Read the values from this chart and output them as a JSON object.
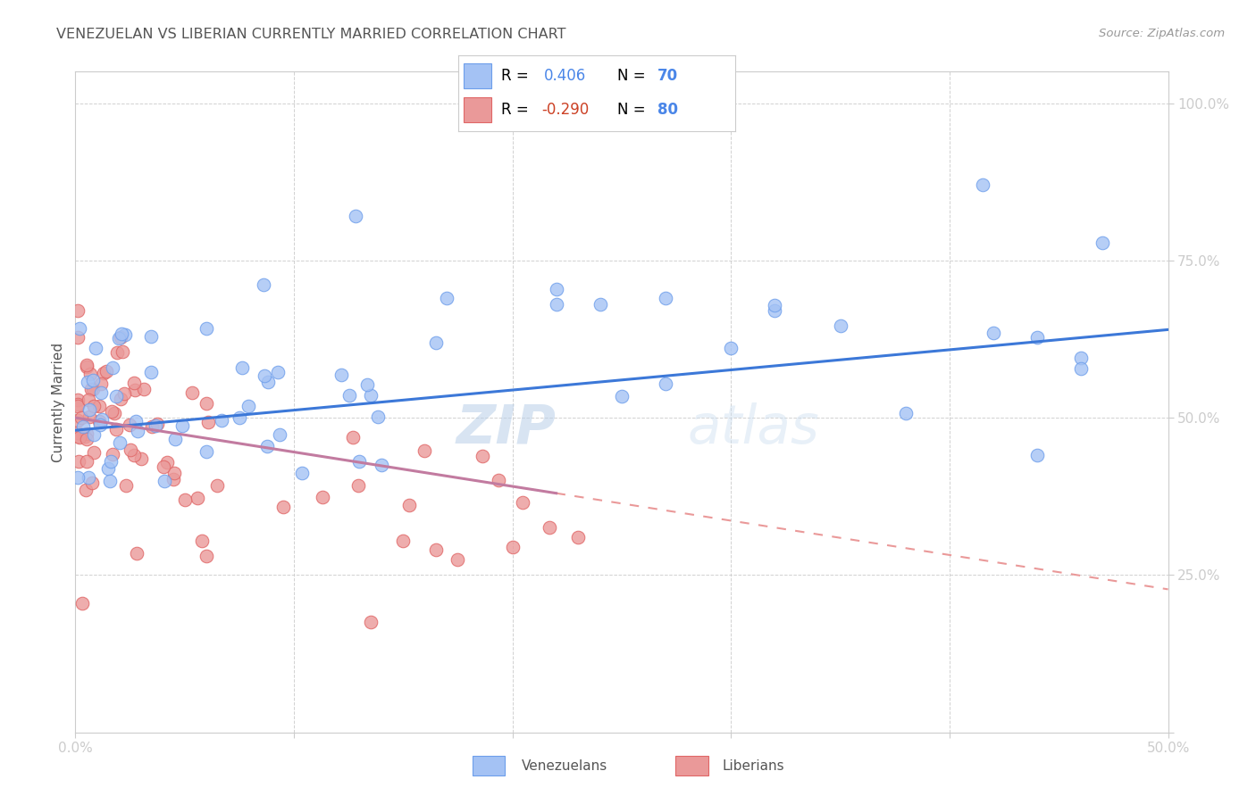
{
  "title": "VENEZUELAN VS LIBERIAN CURRENTLY MARRIED CORRELATION CHART",
  "source": "Source: ZipAtlas.com",
  "ylabel": "Currently Married",
  "label_venezuelans": "Venezuelans",
  "label_liberians": "Liberians",
  "xlim": [
    0.0,
    0.5
  ],
  "ylim": [
    0.0,
    1.05
  ],
  "R_venezuelan": 0.406,
  "N_venezuelan": 70,
  "R_liberian": -0.29,
  "N_liberian": 80,
  "color_venezuelan_fill": "#a4c2f4",
  "color_venezuelan_edge": "#6d9eeb",
  "color_venezuelan_line": "#3c78d8",
  "color_liberian_fill": "#ea9999",
  "color_liberian_edge": "#e06666",
  "color_liberian_line_solid": "#c27ba0",
  "color_liberian_line_dash": "#ea9999",
  "background_color": "#ffffff",
  "grid_color": "#cccccc",
  "tick_color": "#4a86e8",
  "ylabel_color": "#555555",
  "title_color": "#555555",
  "source_color": "#999999",
  "legend_text_color_R": "#000000",
  "legend_text_color_val_ven": "#4a86e8",
  "legend_text_color_val_lib": "#cc4125",
  "legend_text_color_N_label": "#000000",
  "legend_text_color_N_val": "#4a86e8",
  "wm_zip_color": "#a8c8e8",
  "wm_atlas_color": "#c8dff0"
}
